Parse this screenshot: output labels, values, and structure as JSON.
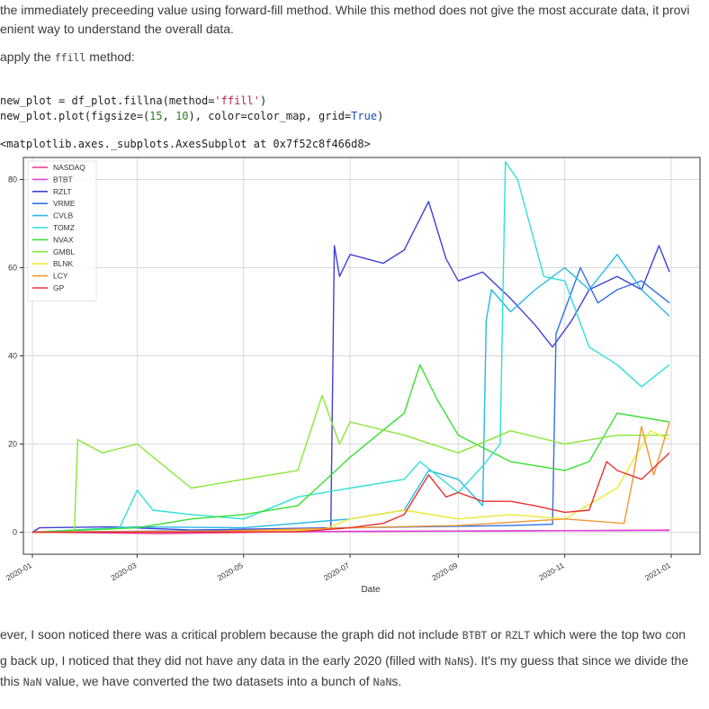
{
  "prose": {
    "line1": "the immediately preceeding value using forward-fill method. While this method does not give the most accurate data, it provi",
    "line2": "enient way to understand the overall data.",
    "line3_pre": "apply the ",
    "line3_code": "ffill",
    "line3_post": " method:",
    "after1_pre": "ever, I soon noticed there was a critical problem because the graph did not include ",
    "after1_code1": "BTBT",
    "after1_mid": " or ",
    "after1_code2": "RZLT",
    "after1_post": " which were the top two con",
    "after2_pre": "g back up, I noticed that they did not have any data in the early 2020 (filled with ",
    "after2_code": "NaN",
    "after2_post": "s). It's my guess that since we divide the",
    "after3_pre": "this ",
    "after3_code": "NaN",
    "after3_mid": " value, we have converted the two datasets into a bunch of ",
    "after3_code2": "NaN",
    "after3_post": "s."
  },
  "code": {
    "l1_a": "new_plot = df_plot.fillna(method=",
    "l1_str": "'ffill'",
    "l1_b": ")",
    "l2_a": "new_plot.plot(figsize=(",
    "l2_n1": "15",
    "l2_c": ", ",
    "l2_n2": "10",
    "l2_d": "), color=color_map, grid=",
    "l2_kw": "True",
    "l2_e": ")",
    "output": "<matplotlib.axes._subplots.AxesSubplot at 0x7f52c8f466d8>"
  },
  "chart_data": {
    "type": "line",
    "xlabel": "Date",
    "ylabel": "",
    "title": "",
    "xlim": [
      "2020-01-01",
      "2021-01-01"
    ],
    "ylim": [
      -5,
      85
    ],
    "x_ticks": [
      "2020-01",
      "2020-03",
      "2020-05",
      "2020-07",
      "2020-09",
      "2020-11",
      "2021-01"
    ],
    "y_ticks": [
      0,
      20,
      40,
      60,
      80
    ],
    "grid": true,
    "legend_position": "top-left",
    "series": [
      {
        "name": "NASDAQ",
        "color": "#e8388e",
        "points": [
          [
            "2020-01-01",
            0.0
          ],
          [
            "2020-03-15",
            -0.3
          ],
          [
            "2020-06-01",
            0.1
          ],
          [
            "2020-08-01",
            0.2
          ],
          [
            "2020-10-01",
            0.3
          ],
          [
            "2020-12-01",
            0.4
          ],
          [
            "2020-12-31",
            0.5
          ]
        ]
      },
      {
        "name": "BTBT",
        "color": "#e040e0",
        "points": [
          [
            "2020-01-01",
            0.1
          ],
          [
            "2020-04-01",
            0.0
          ],
          [
            "2020-07-01",
            0.2
          ],
          [
            "2020-10-01",
            0.3
          ],
          [
            "2020-12-31",
            0.4
          ]
        ]
      },
      {
        "name": "RZLT",
        "color": "#4040d8",
        "points": [
          [
            "2020-01-01",
            0.0
          ],
          [
            "2020-01-05",
            1.0
          ],
          [
            "2020-02-15",
            1.2
          ],
          [
            "2020-04-01",
            0.5
          ],
          [
            "2020-06-20",
            1.0
          ],
          [
            "2020-06-22",
            65
          ],
          [
            "2020-06-25",
            58
          ],
          [
            "2020-07-01",
            63
          ],
          [
            "2020-07-20",
            61
          ],
          [
            "2020-08-01",
            64
          ],
          [
            "2020-08-15",
            75
          ],
          [
            "2020-08-25",
            62
          ],
          [
            "2020-09-01",
            57
          ],
          [
            "2020-09-15",
            59
          ],
          [
            "2020-10-01",
            53
          ],
          [
            "2020-10-15",
            47
          ],
          [
            "2020-10-25",
            42
          ],
          [
            "2020-11-05",
            48
          ],
          [
            "2020-11-15",
            55
          ],
          [
            "2020-12-01",
            58
          ],
          [
            "2020-12-15",
            55
          ],
          [
            "2020-12-25",
            65
          ],
          [
            "2020-12-31",
            59
          ]
        ]
      },
      {
        "name": "VRME",
        "color": "#3070e8",
        "points": [
          [
            "2020-01-01",
            0.0
          ],
          [
            "2020-04-01",
            0.3
          ],
          [
            "2020-07-01",
            1.0
          ],
          [
            "2020-10-01",
            1.5
          ],
          [
            "2020-10-25",
            1.8
          ],
          [
            "2020-10-27",
            45
          ],
          [
            "2020-11-10",
            60
          ],
          [
            "2020-11-20",
            52
          ],
          [
            "2020-12-01",
            55
          ],
          [
            "2020-12-15",
            57
          ],
          [
            "2020-12-31",
            52
          ]
        ]
      },
      {
        "name": "CVLB",
        "color": "#28b8e8",
        "points": [
          [
            "2020-01-01",
            0.0
          ],
          [
            "2020-03-01",
            1.2
          ],
          [
            "2020-05-01",
            1.0
          ],
          [
            "2020-07-01",
            3.0
          ],
          [
            "2020-08-01",
            5.0
          ],
          [
            "2020-08-15",
            14.0
          ],
          [
            "2020-09-01",
            12.0
          ],
          [
            "2020-09-15",
            6.0
          ],
          [
            "2020-09-17",
            48.0
          ],
          [
            "2020-09-20",
            55
          ],
          [
            "2020-10-01",
            50
          ],
          [
            "2020-10-15",
            55
          ],
          [
            "2020-11-01",
            60
          ],
          [
            "2020-11-15",
            55
          ],
          [
            "2020-12-01",
            63
          ],
          [
            "2020-12-15",
            55
          ],
          [
            "2020-12-31",
            49
          ]
        ]
      },
      {
        "name": "TOMZ",
        "color": "#30e0d8",
        "points": [
          [
            "2020-01-01",
            0.0
          ],
          [
            "2020-02-20",
            1.0
          ],
          [
            "2020-03-01",
            9.5
          ],
          [
            "2020-03-10",
            5.0
          ],
          [
            "2020-04-01",
            4.0
          ],
          [
            "2020-05-01",
            3.0
          ],
          [
            "2020-06-01",
            8.0
          ],
          [
            "2020-07-01",
            10.0
          ],
          [
            "2020-08-01",
            12.0
          ],
          [
            "2020-08-10",
            16.0
          ],
          [
            "2020-09-01",
            9.0
          ],
          [
            "2020-09-15",
            15.0
          ],
          [
            "2020-09-25",
            20.0
          ],
          [
            "2020-09-28",
            84
          ],
          [
            "2020-10-05",
            80
          ],
          [
            "2020-10-20",
            58
          ],
          [
            "2020-11-01",
            57
          ],
          [
            "2020-11-15",
            42
          ],
          [
            "2020-12-01",
            38
          ],
          [
            "2020-12-15",
            33
          ],
          [
            "2020-12-31",
            38
          ]
        ]
      },
      {
        "name": "NVAX",
        "color": "#38e030",
        "points": [
          [
            "2020-01-01",
            0.0
          ],
          [
            "2020-03-01",
            1.0
          ],
          [
            "2020-04-01",
            3.0
          ],
          [
            "2020-05-01",
            4.0
          ],
          [
            "2020-06-01",
            6.0
          ],
          [
            "2020-07-01",
            17.0
          ],
          [
            "2020-08-01",
            27.0
          ],
          [
            "2020-08-10",
            38.0
          ],
          [
            "2020-08-20",
            30.0
          ],
          [
            "2020-09-01",
            22.0
          ],
          [
            "2020-10-01",
            16.0
          ],
          [
            "2020-11-01",
            14.0
          ],
          [
            "2020-11-15",
            16.0
          ],
          [
            "2020-12-01",
            27.0
          ],
          [
            "2020-12-31",
            25.0
          ]
        ]
      },
      {
        "name": "GMBL",
        "color": "#88e838",
        "points": [
          [
            "2020-01-01",
            0.0
          ],
          [
            "2020-01-25",
            0.1
          ],
          [
            "2020-01-27",
            21.0
          ],
          [
            "2020-02-10",
            18.0
          ],
          [
            "2020-03-01",
            20.0
          ],
          [
            "2020-04-01",
            10.0
          ],
          [
            "2020-05-01",
            12.0
          ],
          [
            "2020-06-01",
            14.0
          ],
          [
            "2020-06-15",
            31.0
          ],
          [
            "2020-06-25",
            20.0
          ],
          [
            "2020-07-01",
            25.0
          ],
          [
            "2020-08-01",
            22.0
          ],
          [
            "2020-09-01",
            18.0
          ],
          [
            "2020-10-01",
            23.0
          ],
          [
            "2020-11-01",
            20.0
          ],
          [
            "2020-12-01",
            22.0
          ],
          [
            "2020-12-31",
            22.0
          ]
        ]
      },
      {
        "name": "BLNK",
        "color": "#f0e830",
        "points": [
          [
            "2020-01-01",
            0.0
          ],
          [
            "2020-04-01",
            0.2
          ],
          [
            "2020-06-15",
            0.5
          ],
          [
            "2020-07-01",
            3.0
          ],
          [
            "2020-08-01",
            5.0
          ],
          [
            "2020-09-01",
            3.0
          ],
          [
            "2020-10-01",
            4.0
          ],
          [
            "2020-11-01",
            3.0
          ],
          [
            "2020-12-01",
            10.0
          ],
          [
            "2020-12-20",
            23.0
          ],
          [
            "2020-12-31",
            21.0
          ]
        ]
      },
      {
        "name": "LCY",
        "color": "#f09830",
        "points": [
          [
            "2020-01-01",
            0.0
          ],
          [
            "2020-04-01",
            0.1
          ],
          [
            "2020-07-01",
            1.0
          ],
          [
            "2020-09-01",
            1.5
          ],
          [
            "2020-11-01",
            3.0
          ],
          [
            "2020-12-05",
            2.0
          ],
          [
            "2020-12-10",
            12.0
          ],
          [
            "2020-12-15",
            24.0
          ],
          [
            "2020-12-22",
            13.0
          ],
          [
            "2020-12-31",
            25.0
          ]
        ]
      },
      {
        "name": "GP",
        "color": "#e83030",
        "points": [
          [
            "2020-01-01",
            0.0
          ],
          [
            "2020-06-01",
            0.1
          ],
          [
            "2020-07-01",
            1.0
          ],
          [
            "2020-07-20",
            2.0
          ],
          [
            "2020-08-01",
            4.0
          ],
          [
            "2020-08-15",
            13.0
          ],
          [
            "2020-08-25",
            8.0
          ],
          [
            "2020-09-01",
            9.0
          ],
          [
            "2020-09-15",
            7.0
          ],
          [
            "2020-10-01",
            7.0
          ],
          [
            "2020-10-15",
            6.0
          ],
          [
            "2020-11-01",
            4.5
          ],
          [
            "2020-11-15",
            5.0
          ],
          [
            "2020-11-25",
            16.0
          ],
          [
            "2020-12-01",
            14.0
          ],
          [
            "2020-12-15",
            12.0
          ],
          [
            "2020-12-31",
            18.0
          ]
        ]
      }
    ]
  }
}
